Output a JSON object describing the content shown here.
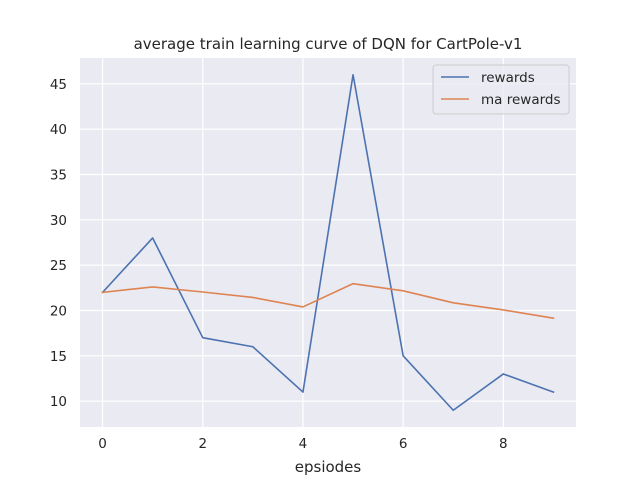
{
  "chart_data": {
    "type": "line",
    "title": "average train learning curve of DQN for CartPole-v1",
    "xlabel": "epsiodes",
    "ylabel": "",
    "x": [
      0,
      1,
      2,
      3,
      4,
      5,
      6,
      7,
      8,
      9
    ],
    "series": [
      {
        "name": "rewards",
        "color": "#4c72b0",
        "values": [
          22,
          28,
          17,
          16,
          11,
          46,
          15,
          9,
          13,
          11
        ]
      },
      {
        "name": "ma rewards",
        "color": "#dd8452",
        "values": [
          22,
          22.6,
          22.04,
          21.44,
          20.39,
          22.96,
          22.17,
          20.85,
          20.06,
          19.15
        ]
      }
    ],
    "xlim": [
      -0.45,
      9.45
    ],
    "ylim": [
      7.15,
      47.85
    ],
    "xticks": [
      0,
      2,
      4,
      6,
      8
    ],
    "yticks": [
      10,
      15,
      20,
      25,
      30,
      35,
      40,
      45
    ],
    "grid": true,
    "legend": "top-right",
    "background": "#eaeaf2"
  }
}
